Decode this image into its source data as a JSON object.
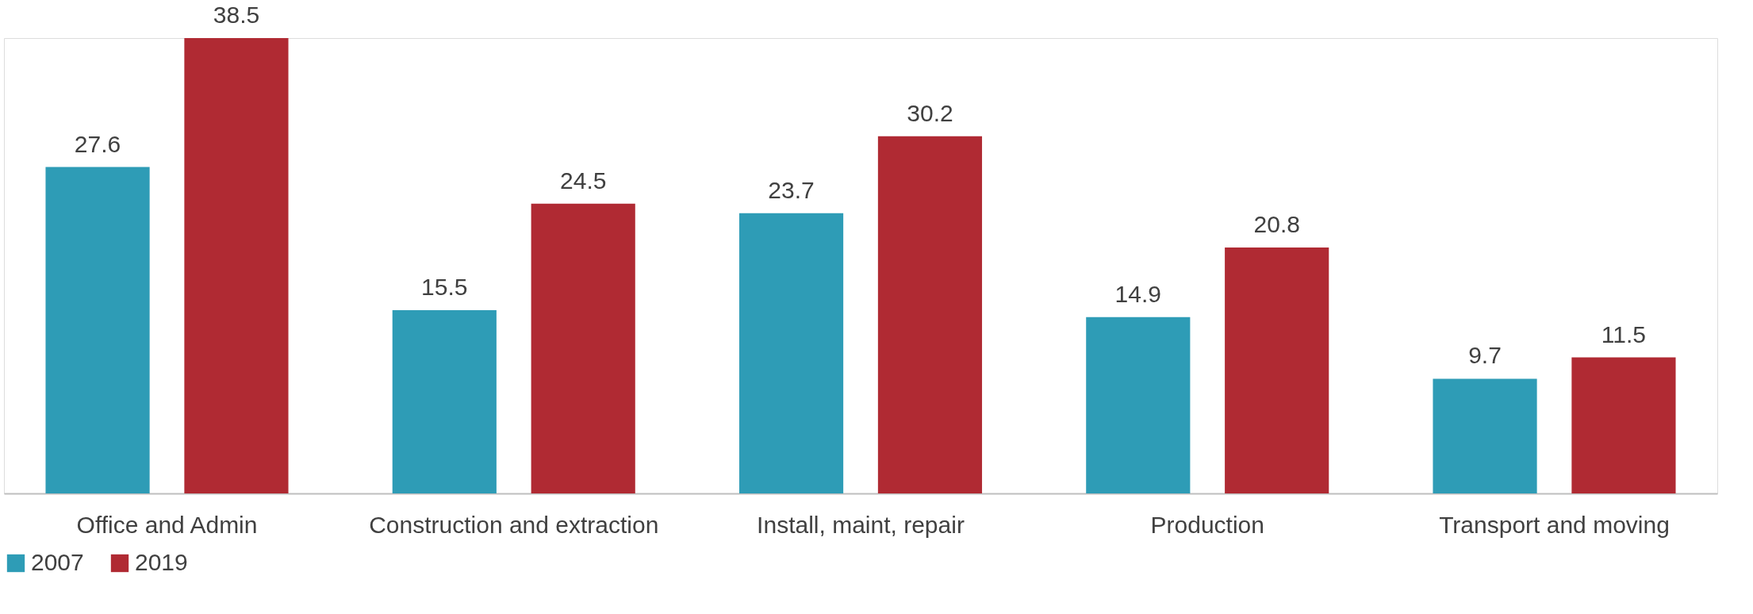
{
  "chart_data": {
    "type": "bar",
    "categories": [
      "Office and Admin",
      "Construction and extraction",
      "Install, maint, repair",
      "Production",
      "Transport and moving"
    ],
    "series": [
      {
        "name": "2007",
        "color": "#2e9cb6",
        "values": [
          27.6,
          15.5,
          23.7,
          14.9,
          9.7
        ]
      },
      {
        "name": "2019",
        "color": "#b02a33",
        "values": [
          38.5,
          24.5,
          30.2,
          20.8,
          11.5
        ]
      }
    ],
    "data_labels": true,
    "legend": "bottom",
    "grid": false
  }
}
